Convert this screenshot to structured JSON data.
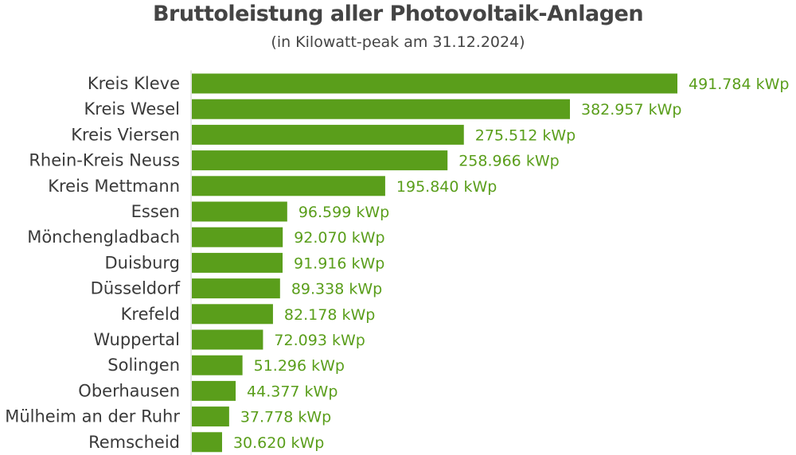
{
  "chart_data": {
    "type": "bar",
    "orientation": "horizontal",
    "title": "Bruttoleistung aller Photovoltaik-Anlagen",
    "subtitle": "(in Kilowatt-peak am 31.12.2024)",
    "categories": [
      "Kreis Kleve",
      "Kreis Wesel",
      "Kreis Viersen",
      "Rhein-Kreis Neuss",
      "Kreis Mettmann",
      "Essen",
      "Mönchengladbach",
      "Duisburg",
      "Düsseldorf",
      "Krefeld",
      "Wuppertal",
      "Solingen",
      "Oberhausen",
      "Mülheim an der Ruhr",
      "Remscheid"
    ],
    "values": [
      491784,
      382957,
      275512,
      258966,
      195840,
      96599,
      92070,
      91916,
      89338,
      82178,
      72093,
      51296,
      44377,
      37778,
      30620
    ],
    "value_labels": [
      "491.784 kWp",
      "382.957 kWp",
      "275.512 kWp",
      "258.966 kWp",
      "195.840 kWp",
      "96.599 kWp",
      "92.070 kWp",
      "91.916 kWp",
      "89.338 kWp",
      "82.178 kWp",
      "72.093 kWp",
      "51.296 kWp",
      "44.377 kWp",
      "37.778 kWp",
      "30.620 kWp"
    ],
    "xlim": [
      0,
      491784
    ],
    "grid": false,
    "legend": "none",
    "colors": {
      "bar": "#5a9e1b",
      "value_label": "#5a9e1b",
      "category_label": "#3a3a3a",
      "axis": "#cccccc",
      "title": "#444444"
    }
  }
}
